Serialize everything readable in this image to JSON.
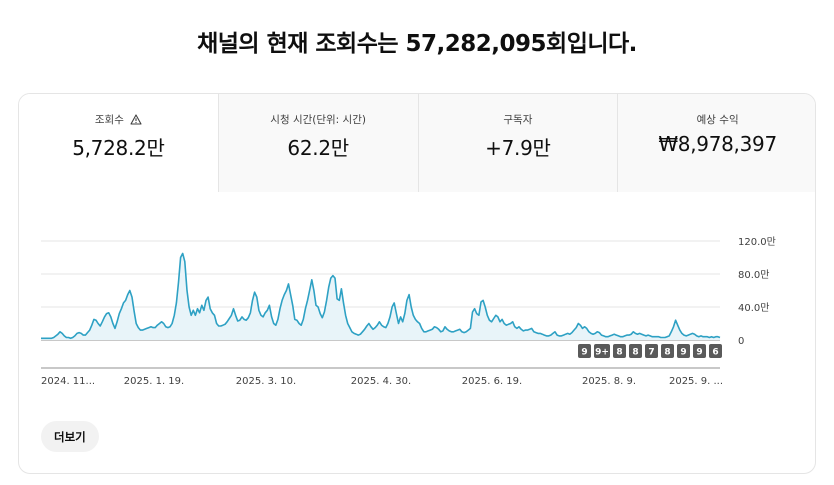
{
  "headline": "채널의 현재 조회수는 57,282,095회입니다.",
  "tabs": [
    {
      "label": "조회수",
      "value": "5,728.2만",
      "warning": true,
      "active": true
    },
    {
      "label": "시청 시간(단위: 시간)",
      "value": "62.2만"
    },
    {
      "label": "구독자",
      "value": "+7.9만"
    },
    {
      "label": "예상 수익",
      "value": "₩8,978,397"
    }
  ],
  "more_button": "더보기",
  "colors": {
    "line": "#2ea1c4",
    "fill": "#e8f4f9",
    "grid": "#e5e5e5",
    "badge": "#5a5a5a"
  },
  "icons": {
    "warning": "warning-triangle-icon"
  },
  "chart_data": {
    "type": "area",
    "x_range": [
      "2024-11-20",
      "2025-09-20"
    ],
    "xtick_labels": [
      "2024. 11...",
      "2025. 1. 19.",
      "2025. 3. 10.",
      "2025. 4. 30.",
      "2025. 6. 19.",
      "2025. 8. 9.",
      "2025. 9. ..."
    ],
    "ytick_labels": [
      "120.0만",
      "80.0만",
      "40.0만",
      "0"
    ],
    "yticks": [
      120,
      80,
      40,
      0
    ],
    "ylim": [
      0,
      120
    ],
    "grid": true,
    "series": [
      {
        "values": [
          2,
          2,
          2,
          2,
          2,
          2,
          3,
          5,
          7,
          10,
          8,
          5,
          3,
          3,
          2,
          3,
          5,
          8,
          9,
          8,
          6,
          6,
          9,
          12,
          18,
          25,
          24,
          20,
          17,
          22,
          28,
          32,
          33,
          28,
          20,
          14,
          22,
          32,
          38,
          45,
          48,
          55,
          60,
          52,
          35,
          20,
          15,
          12,
          12,
          13,
          14,
          15,
          16,
          15,
          15,
          18,
          20,
          22,
          20,
          16,
          15,
          16,
          20,
          30,
          45,
          70,
          100,
          105,
          95,
          60,
          40,
          30,
          36,
          30,
          38,
          33,
          42,
          36,
          48,
          52,
          38,
          33,
          30,
          20,
          17,
          17,
          18,
          19,
          22,
          26,
          30,
          38,
          30,
          23,
          24,
          28,
          25,
          24,
          27,
          33,
          48,
          58,
          52,
          36,
          30,
          28,
          33,
          36,
          42,
          28,
          20,
          18,
          25,
          38,
          48,
          55,
          60,
          68,
          55,
          42,
          25,
          24,
          20,
          18,
          25,
          38,
          48,
          60,
          73,
          60,
          42,
          40,
          32,
          27,
          34,
          48,
          64,
          75,
          78,
          75,
          50,
          48,
          62,
          45,
          30,
          20,
          15,
          10,
          8,
          7,
          6,
          7,
          10,
          13,
          17,
          20,
          16,
          13,
          15,
          18,
          22,
          18,
          16,
          15,
          20,
          28,
          40,
          45,
          32,
          20,
          28,
          22,
          32,
          48,
          55,
          40,
          30,
          25,
          22,
          20,
          14,
          10,
          10,
          11,
          12,
          13,
          16,
          15,
          13,
          10,
          11,
          16,
          13,
          11,
          10,
          10,
          11,
          12,
          13,
          10,
          9,
          10,
          12,
          14,
          34,
          38,
          32,
          30,
          46,
          48,
          40,
          30,
          24,
          22,
          26,
          30,
          28,
          22,
          25,
          20,
          18,
          19,
          20,
          22,
          16,
          14,
          16,
          13,
          11,
          12,
          12,
          13,
          14,
          10,
          9,
          8,
          8,
          7,
          6,
          5,
          5,
          6,
          8,
          10,
          6,
          5,
          5,
          6,
          7,
          8,
          7,
          9,
          12,
          15,
          20,
          18,
          14,
          16,
          14,
          10,
          8,
          7,
          8,
          10,
          9,
          6,
          5,
          4,
          4,
          5,
          6,
          7,
          6,
          5,
          4,
          4,
          5,
          6,
          6,
          7,
          10,
          8,
          7,
          8,
          7,
          6,
          5,
          6,
          5,
          4,
          4,
          4,
          4,
          3,
          3,
          3,
          4,
          5,
          10,
          16,
          24,
          18,
          12,
          8,
          6,
          5,
          6,
          7,
          8,
          7,
          5,
          4,
          5,
          4,
          4,
          4,
          3,
          4,
          3,
          4,
          4,
          3
        ]
      }
    ],
    "milestone_badges": [
      "9",
      "9+",
      "8",
      "8",
      "7",
      "8",
      "9",
      "9",
      "6"
    ]
  }
}
